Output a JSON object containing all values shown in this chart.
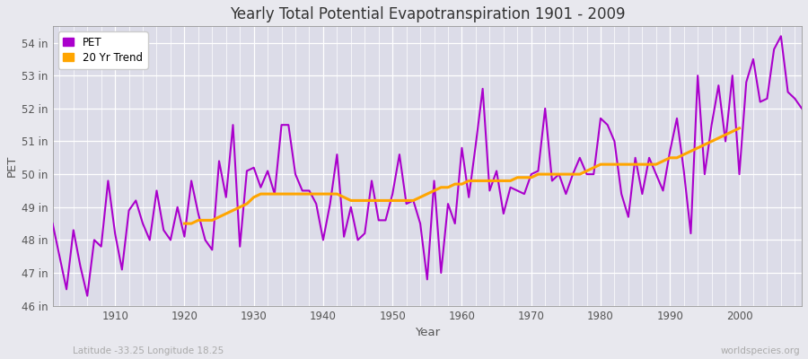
{
  "title": "Yearly Total Potential Evapotranspiration 1901 - 2009",
  "xlabel": "Year",
  "ylabel": "PET",
  "lat_lon_label": "Latitude -33.25 Longitude 18.25",
  "watermark": "worldspecies.org",
  "pet_color": "#aa00cc",
  "trend_color": "#FFA500",
  "background_color": "#e8e8ee",
  "plot_bg_color": "#dcdce8",
  "grid_color": "#f0f0f0",
  "ylim": [
    46,
    54.5
  ],
  "xlim": [
    1901,
    2009
  ],
  "yticks": [
    46,
    47,
    48,
    49,
    50,
    51,
    52,
    53,
    54
  ],
  "ytick_labels": [
    "46 in",
    "47 in",
    "48 in",
    "49 in",
    "50 in",
    "51 in",
    "52 in",
    "53 in",
    "54 in"
  ],
  "xticks": [
    1910,
    1920,
    1930,
    1940,
    1950,
    1960,
    1970,
    1980,
    1990,
    2000
  ],
  "years": [
    1901,
    1902,
    1903,
    1904,
    1905,
    1906,
    1907,
    1908,
    1909,
    1910,
    1911,
    1912,
    1913,
    1914,
    1915,
    1916,
    1917,
    1918,
    1919,
    1920,
    1921,
    1922,
    1923,
    1924,
    1925,
    1926,
    1927,
    1928,
    1929,
    1930,
    1931,
    1932,
    1933,
    1934,
    1935,
    1936,
    1937,
    1938,
    1939,
    1940,
    1941,
    1942,
    1943,
    1944,
    1945,
    1946,
    1947,
    1948,
    1949,
    1950,
    1951,
    1952,
    1953,
    1954,
    1955,
    1956,
    1957,
    1958,
    1959,
    1960,
    1961,
    1962,
    1963,
    1964,
    1965,
    1966,
    1967,
    1968,
    1969,
    1970,
    1971,
    1972,
    1973,
    1974,
    1975,
    1976,
    1977,
    1978,
    1979,
    1980,
    1981,
    1982,
    1983,
    1984,
    1985,
    1986,
    1987,
    1988,
    1989,
    1990,
    1991,
    1992,
    1993,
    1994,
    1995,
    1996,
    1997,
    1998,
    1999,
    2000,
    2001,
    2002,
    2003,
    2004,
    2005,
    2006,
    2007,
    2008,
    2009
  ],
  "pet_values": [
    48.5,
    47.5,
    46.5,
    48.3,
    47.2,
    46.3,
    48.0,
    47.8,
    49.8,
    48.2,
    47.1,
    48.9,
    49.2,
    48.5,
    48.0,
    49.5,
    48.3,
    48.0,
    49.0,
    48.1,
    49.8,
    48.8,
    48.0,
    47.7,
    50.4,
    49.3,
    51.5,
    47.8,
    50.1,
    50.2,
    49.6,
    50.1,
    49.4,
    51.5,
    51.5,
    50.0,
    49.5,
    49.5,
    49.1,
    48.0,
    49.1,
    50.6,
    48.1,
    49.0,
    48.0,
    48.2,
    49.8,
    48.6,
    48.6,
    49.4,
    50.6,
    49.1,
    49.2,
    48.5,
    46.8,
    49.8,
    47.0,
    49.1,
    48.5,
    50.8,
    49.3,
    50.9,
    52.6,
    49.5,
    50.1,
    48.8,
    49.6,
    49.5,
    49.4,
    50.0,
    50.1,
    52.0,
    49.8,
    50.0,
    49.4,
    50.0,
    50.5,
    50.0,
    50.0,
    51.7,
    51.5,
    51.0,
    49.4,
    48.7,
    50.5,
    49.4,
    50.5,
    50.0,
    49.5,
    50.7,
    51.7,
    50.1,
    48.2,
    53.0,
    50.0,
    51.5,
    52.7,
    51.0,
    53.0,
    50.0,
    52.8,
    53.5,
    52.2,
    52.3,
    53.8,
    54.2,
    52.5,
    52.3,
    52.0
  ],
  "trend_values": [
    null,
    null,
    null,
    null,
    null,
    null,
    null,
    null,
    null,
    null,
    null,
    null,
    null,
    null,
    null,
    null,
    null,
    null,
    null,
    48.5,
    48.5,
    48.6,
    48.6,
    48.6,
    48.7,
    48.8,
    48.9,
    49.0,
    49.1,
    49.3,
    49.4,
    49.4,
    49.4,
    49.4,
    49.4,
    49.4,
    49.4,
    49.4,
    49.4,
    49.4,
    49.4,
    49.4,
    49.3,
    49.2,
    49.2,
    49.2,
    49.2,
    49.2,
    49.2,
    49.2,
    49.2,
    49.2,
    49.2,
    49.3,
    49.4,
    49.5,
    49.6,
    49.6,
    49.7,
    49.7,
    49.8,
    49.8,
    49.8,
    49.8,
    49.8,
    49.8,
    49.8,
    49.9,
    49.9,
    49.9,
    50.0,
    50.0,
    50.0,
    50.0,
    50.0,
    50.0,
    50.0,
    50.1,
    50.2,
    50.3,
    50.3,
    50.3,
    50.3,
    50.3,
    50.3,
    50.3,
    50.3,
    50.3,
    50.4,
    50.5,
    50.5,
    50.6,
    50.7,
    50.8,
    50.9,
    51.0,
    51.1,
    51.2,
    51.3,
    51.4,
    null,
    null,
    null,
    null,
    null,
    null,
    null,
    null
  ]
}
